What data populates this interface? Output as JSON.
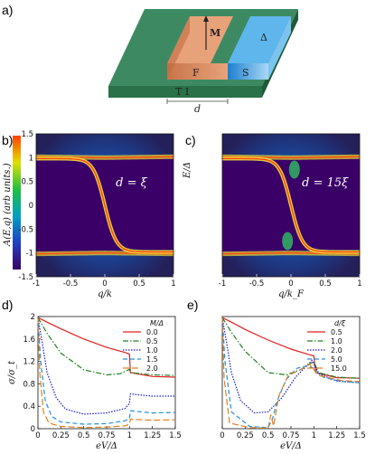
{
  "panels": {
    "a": "a)",
    "b": "b)",
    "c": "c)",
    "d": "d)",
    "e": "e)"
  },
  "schematic": {
    "layers": [
      {
        "name": "TI",
        "label": "T I",
        "color": "#2f7a52"
      },
      {
        "name": "F",
        "label": "F",
        "color": "#d98b5f"
      },
      {
        "name": "S",
        "label": "S",
        "color": "#3aa3e0"
      }
    ],
    "magnetization_label": "M",
    "gap_label": "Δ",
    "width_label": "d"
  },
  "colorbar": {
    "label": "A(E,q)  (arb units.)",
    "colors": [
      "#3a0060",
      "#2040c0",
      "#00a0c0",
      "#20c040",
      "#e0e000",
      "#ff4000"
    ]
  },
  "spectral_panels": [
    {
      "id": "b",
      "annotation": "d = ξ",
      "xlabel": "q/k",
      "ylabel": "E/Δ",
      "xticks": [
        "-1",
        "-0.5",
        "0",
        "0.5",
        "1"
      ],
      "yticks": [
        "1.5",
        "1",
        "0.5",
        "0",
        "-0.5",
        "-1",
        "-1.5"
      ]
    },
    {
      "id": "c",
      "annotation": "d = 15ξ",
      "xlabel": "q/k_F",
      "ylabel": "",
      "xticks": [
        "-1",
        "-0.5",
        "0",
        "0.5",
        "1"
      ],
      "yticks": []
    }
  ],
  "chart_data": [
    {
      "type": "line",
      "id": "d",
      "xlabel": "eV/Δ",
      "ylabel": "σ/σ_t",
      "xlim": [
        0,
        1.5
      ],
      "ylim": [
        0,
        2
      ],
      "xticks": [
        "0",
        "0.25",
        "0.5",
        "0.75",
        "1",
        "1.25",
        "1.5"
      ],
      "yticks": [
        "2",
        "1.6",
        "1.2",
        "0.8",
        "0.4",
        "0"
      ],
      "legend_title": "M/Δ",
      "legend_position": "top-right",
      "series": [
        {
          "name": "0.0",
          "color": "#e02020",
          "dash": "",
          "x": [
            0,
            0.1,
            0.25,
            0.5,
            0.75,
            0.95,
            1.0,
            1.01,
            1.25,
            1.5
          ],
          "y": [
            1.98,
            1.9,
            1.78,
            1.6,
            1.45,
            1.36,
            1.33,
            1.0,
            0.93,
            0.92
          ]
        },
        {
          "name": "0.5",
          "color": "#208020",
          "dash": "6,2,1.5,2",
          "x": [
            0,
            0.1,
            0.25,
            0.5,
            0.75,
            0.9,
            1.0,
            1.01,
            1.25,
            1.5
          ],
          "y": [
            1.98,
            1.7,
            1.35,
            1.05,
            0.96,
            0.98,
            1.06,
            1.0,
            0.96,
            0.95
          ]
        },
        {
          "name": "1.0",
          "color": "#1a1ad0",
          "dash": "1.5,1.5",
          "x": [
            0,
            0.05,
            0.1,
            0.2,
            0.3,
            0.5,
            0.75,
            0.95,
            1.0,
            1.01,
            1.25,
            1.5
          ],
          "y": [
            1.98,
            1.5,
            1.0,
            0.55,
            0.35,
            0.26,
            0.28,
            0.36,
            0.45,
            0.62,
            0.58,
            0.58
          ]
        },
        {
          "name": "1.5",
          "color": "#2090e0",
          "dash": "5,3",
          "x": [
            0,
            0.03,
            0.08,
            0.15,
            0.25,
            0.5,
            0.75,
            0.95,
            1.0,
            1.01,
            1.25,
            1.5
          ],
          "y": [
            1.98,
            1.2,
            0.5,
            0.22,
            0.12,
            0.08,
            0.09,
            0.14,
            0.18,
            0.32,
            0.28,
            0.29
          ]
        },
        {
          "name": "2.0",
          "color": "#e08020",
          "dash": "7,3",
          "x": [
            0,
            0.02,
            0.06,
            0.12,
            0.25,
            0.5,
            0.75,
            0.95,
            1.0,
            1.01,
            1.25,
            1.5
          ],
          "y": [
            1.98,
            1.0,
            0.3,
            0.1,
            0.04,
            0.02,
            0.03,
            0.05,
            0.08,
            0.17,
            0.15,
            0.16
          ]
        }
      ]
    },
    {
      "type": "line",
      "id": "e",
      "xlabel": "eV/Δ",
      "ylabel": "",
      "xlim": [
        0,
        1.5
      ],
      "ylim": [
        0,
        2
      ],
      "xticks": [
        "0",
        "0.25",
        "0.5",
        "0.75",
        "1",
        "1.25",
        "1.5"
      ],
      "yticks": [],
      "legend_title": "d/ξ",
      "legend_position": "top-right",
      "series": [
        {
          "name": "0.5",
          "color": "#e02020",
          "dash": "",
          "x": [
            0,
            0.1,
            0.25,
            0.5,
            0.75,
            0.95,
            1.0,
            1.02,
            1.25,
            1.5
          ],
          "y": [
            1.98,
            1.9,
            1.77,
            1.58,
            1.42,
            1.32,
            1.3,
            1.0,
            0.91,
            0.9
          ]
        },
        {
          "name": "1.0",
          "color": "#208020",
          "dash": "6,2,1.5,2",
          "x": [
            0,
            0.1,
            0.25,
            0.5,
            0.7,
            0.85,
            0.95,
            1.0,
            1.05,
            1.25,
            1.5
          ],
          "y": [
            1.98,
            1.72,
            1.38,
            1.0,
            0.96,
            1.05,
            1.15,
            1.2,
            1.0,
            0.92,
            0.9
          ]
        },
        {
          "name": "2.0",
          "color": "#1a1ad0",
          "dash": "1.5,1.5",
          "x": [
            0,
            0.05,
            0.1,
            0.2,
            0.35,
            0.5,
            0.65,
            0.8,
            0.92,
            0.98,
            1.05,
            1.25,
            1.5
          ],
          "y": [
            1.98,
            1.5,
            1.0,
            0.5,
            0.28,
            0.3,
            0.55,
            0.92,
            1.12,
            1.22,
            0.98,
            0.85,
            0.82
          ]
        },
        {
          "name": "5.0",
          "color": "#2090e0",
          "dash": "5,3",
          "x": [
            0,
            0.03,
            0.1,
            0.3,
            0.5,
            0.55,
            0.6,
            0.7,
            0.82,
            0.92,
            1.0,
            1.1,
            1.3,
            1.5
          ],
          "y": [
            1.98,
            1.2,
            0.3,
            0.04,
            0.02,
            0.18,
            0.5,
            0.88,
            1.08,
            1.12,
            1.08,
            0.92,
            0.84,
            0.82
          ]
        },
        {
          "name": "15.0",
          "color": "#e08020",
          "dash": "7,3",
          "x": [
            0,
            0.02,
            0.08,
            0.3,
            0.5,
            0.53,
            0.56,
            0.62,
            0.72,
            0.85,
            0.95,
            1.05,
            1.3,
            1.5
          ],
          "y": [
            1.98,
            0.9,
            0.1,
            0.02,
            0.01,
            0.25,
            0.05,
            0.6,
            0.95,
            1.05,
            1.15,
            0.95,
            0.86,
            0.84
          ]
        }
      ]
    }
  ]
}
